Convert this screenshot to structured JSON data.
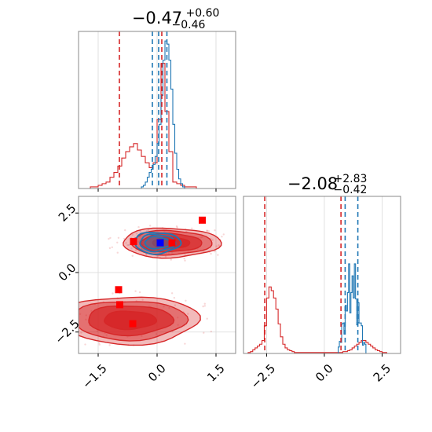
{
  "chart_data": [
    {
      "type": "histogram",
      "panel": "top-left",
      "title": {
        "main": "−0.47",
        "sup": "+0.60",
        "sub": "−0.46"
      },
      "xlim": [
        -2.0,
        2.0
      ],
      "grid": true,
      "series": [
        {
          "name": "",
          "color": "#d62728",
          "bin_start": -2.0,
          "bin_width": 0.1,
          "counts": [
            0,
            0,
            0,
            1,
            1,
            2,
            3,
            4,
            7,
            10,
            14,
            19,
            23,
            26,
            28,
            24,
            20,
            16,
            13,
            11,
            9,
            10,
            7,
            5,
            4,
            3,
            2,
            1,
            1,
            1,
            0,
            0,
            0,
            0,
            0,
            0,
            0,
            0,
            0,
            0
          ],
          "extra_peak": {
            "center": 0.12,
            "height": 78
          }
        },
        {
          "name": "",
          "color": "#1f77b4",
          "bin_start": -2.0,
          "bin_width": 0.05,
          "counts": [
            0,
            0,
            0,
            0,
            0,
            0,
            0,
            0,
            0,
            0,
            0,
            0,
            0,
            0,
            0,
            0,
            0,
            0,
            0,
            0,
            0,
            0,
            0,
            0,
            0,
            0,
            0,
            0,
            0,
            0,
            0,
            0,
            1,
            2,
            4,
            7,
            10,
            12,
            15,
            20,
            28,
            40,
            58,
            80,
            92,
            90,
            80,
            62,
            40,
            22,
            12,
            6,
            3,
            1,
            0,
            0,
            0,
            0,
            0,
            0,
            0,
            0,
            0,
            0,
            0,
            0,
            0,
            0,
            0,
            0,
            0,
            0,
            0,
            0,
            0,
            0,
            0,
            0,
            0,
            0
          ]
        }
      ],
      "vlines": [
        {
          "x": -0.96,
          "color": "#d62728"
        },
        {
          "x": 0.12,
          "color": "#d62728"
        },
        {
          "x": -0.12,
          "color": "#1f77b4"
        },
        {
          "x": 0.04,
          "color": "#1f77b4"
        },
        {
          "x": 0.25,
          "color": "#1f77b4"
        }
      ]
    },
    {
      "type": "contour",
      "panel": "bottom-left",
      "xlim": [
        -2.0,
        2.0
      ],
      "ylim": [
        -3.4,
        3.2
      ],
      "x_ticks": [
        "−1.5",
        "0.0",
        "1.5"
      ],
      "x_tick_values": [
        -1.5,
        0.0,
        1.5
      ],
      "y_ticks": [
        "−2.5",
        "0.0",
        "2.5"
      ],
      "y_tick_values": [
        -2.5,
        0.0,
        2.5
      ],
      "grid": true,
      "regions": [
        {
          "cx": -0.7,
          "cy": -2.0,
          "rx": 1.75,
          "ry": 1.0,
          "color": "#d62728"
        },
        {
          "cx": 0.35,
          "cy": 1.25,
          "rx": 1.25,
          "ry": 0.62,
          "color": "#d62728"
        },
        {
          "cx": 0.0,
          "cy": 1.25,
          "rx": 0.58,
          "ry": 0.45,
          "color": "#1f77b4"
        }
      ],
      "markers": [
        {
          "x": 1.15,
          "y": 2.2,
          "color": "#ff0000"
        },
        {
          "x": -0.6,
          "y": 1.3,
          "color": "#ff0000"
        },
        {
          "x": 0.38,
          "y": 1.25,
          "color": "#ff0000"
        },
        {
          "x": -0.98,
          "y": -0.72,
          "color": "#ff0000"
        },
        {
          "x": -0.95,
          "y": -1.35,
          "color": "#ff0000"
        },
        {
          "x": -0.62,
          "y": -2.15,
          "color": "#ff0000"
        },
        {
          "x": 0.08,
          "y": 1.25,
          "color": "#0000ff"
        }
      ]
    },
    {
      "type": "histogram",
      "panel": "bottom-right",
      "title": {
        "main": "−2.08",
        "sup": "+2.83",
        "sub": "−0.42"
      },
      "xlim": [
        -3.5,
        3.3
      ],
      "x_ticks": [
        "−2.5",
        "0.0",
        "2.5"
      ],
      "x_tick_values": [
        -2.5,
        0.0,
        2.5
      ],
      "grid": true,
      "series": [
        {
          "name": "",
          "color": "#d62728",
          "bin_start": -3.5,
          "bin_width": 0.1,
          "counts": [
            0,
            0,
            1,
            2,
            4,
            6,
            8,
            10,
            14,
            30,
            60,
            72,
            68,
            60,
            48,
            32,
            18,
            10,
            6,
            4,
            3,
            2,
            1,
            1,
            1,
            1,
            1,
            1,
            1,
            1,
            1,
            1,
            1,
            1,
            1,
            1,
            1,
            1,
            1,
            1,
            1,
            1,
            1,
            2,
            2,
            3,
            4,
            6,
            8,
            10,
            12,
            14,
            14,
            12,
            10,
            8,
            6,
            4,
            3,
            2,
            1,
            1,
            0,
            0,
            0,
            0,
            0,
            0
          ]
        },
        {
          "name": "",
          "color": "#1f77b4",
          "bin_start": -3.5,
          "bin_width": 0.05,
          "counts": [
            0,
            0,
            0,
            0,
            0,
            0,
            0,
            0,
            0,
            0,
            0,
            0,
            0,
            0,
            0,
            0,
            0,
            0,
            0,
            0,
            0,
            0,
            0,
            0,
            0,
            0,
            0,
            0,
            0,
            0,
            0,
            0,
            0,
            0,
            0,
            0,
            0,
            0,
            0,
            0,
            0,
            0,
            0,
            0,
            0,
            0,
            0,
            0,
            0,
            0,
            0,
            0,
            0,
            0,
            0,
            0,
            0,
            0,
            0,
            0,
            0,
            0,
            0,
            0,
            0,
            0,
            0,
            0,
            0,
            0,
            0,
            0,
            0,
            0,
            0,
            0,
            0,
            0,
            0,
            0,
            0,
            0,
            0,
            0,
            0,
            0,
            0,
            0,
            0,
            0,
            0,
            0,
            0,
            0,
            0,
            0,
            0,
            0,
            0,
            0,
            0,
            0,
            0,
            0,
            0,
            0,
            0,
            0,
            0,
            0,
            0,
            0,
            0,
            0,
            0,
            0,
            0,
            0,
            0,
            0,
            0,
            0,
            0,
            0,
            0,
            0,
            0,
            0,
            0,
            0,
            0,
            0,
            0,
            0,
            0,
            0,
            0,
            0,
            0,
            0,
            0,
            0,
            0,
            0,
            0,
            0,
            0,
            0,
            0,
            0
          ]
        }
      ],
      "blue_shape": {
        "center": 1.2,
        "half_width": 0.6,
        "height": 100
      },
      "vlines": [
        {
          "x": -2.58,
          "color": "#d62728"
        },
        {
          "x": 0.72,
          "color": "#d62728"
        },
        {
          "x": 0.9,
          "color": "#1f77b4"
        },
        {
          "x": 1.45,
          "color": "#1f77b4"
        }
      ]
    }
  ]
}
